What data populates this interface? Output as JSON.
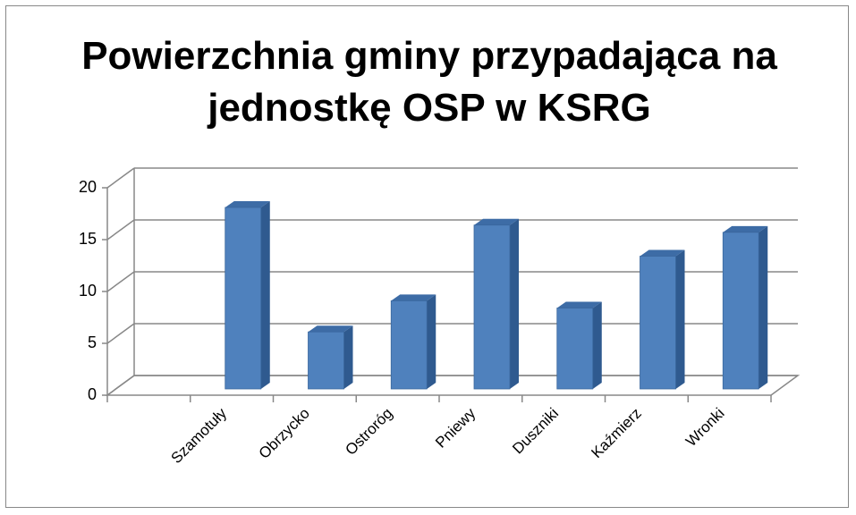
{
  "chart_data": {
    "type": "bar",
    "title": "Powierzchnia gminy przypadająca na jednostkę OSP w KSRG",
    "categories": [
      null,
      "Szamotuły",
      "Obrzycko",
      "Ostroróg",
      "Pniewy",
      "Duszniki",
      "Kaźmierz",
      "Wronki"
    ],
    "values": [
      null,
      17.5,
      5.5,
      8.5,
      15.8,
      7.8,
      12.8,
      15.1
    ],
    "color": "#4f81bd",
    "ylim": [
      0,
      20
    ],
    "yticks": [
      0,
      5,
      10,
      15,
      20
    ],
    "grid": true
  }
}
